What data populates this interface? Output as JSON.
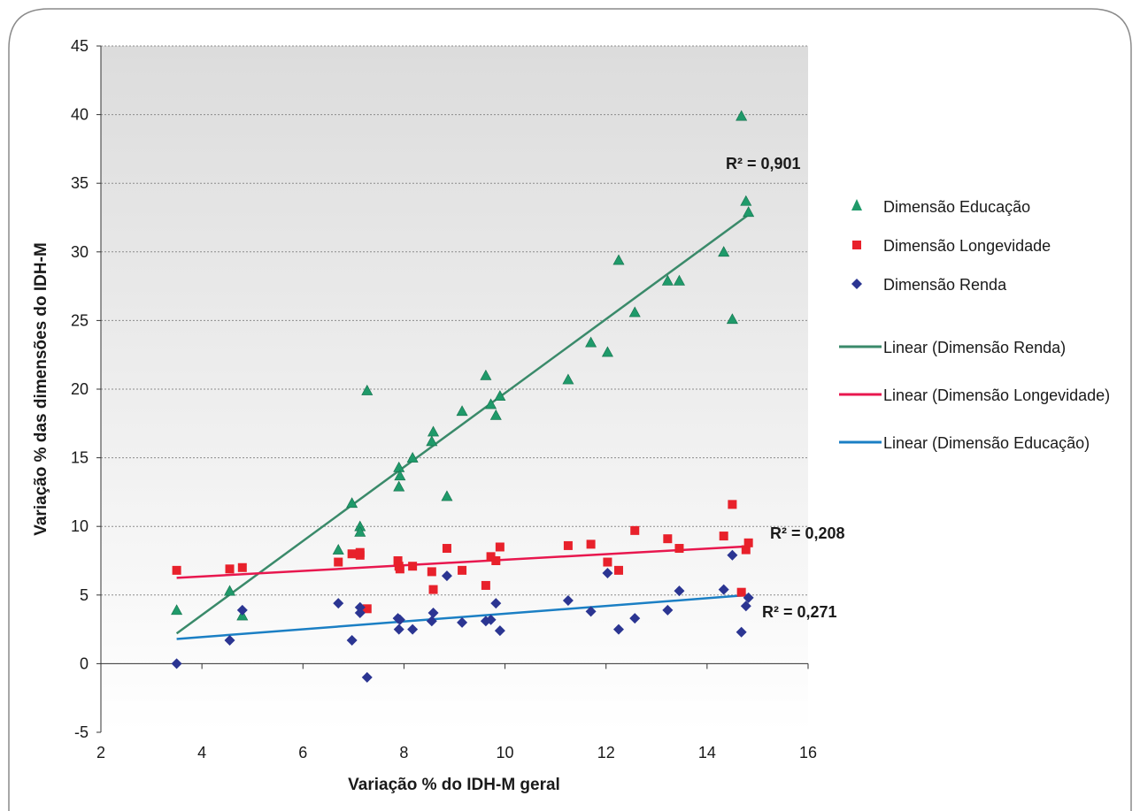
{
  "chart_data": {
    "type": "scatter",
    "xlabel": "Variação % do IDH-M geral",
    "ylabel": "Variação % das dimensões do IDH-M",
    "xlim": [
      2,
      16
    ],
    "ylim": [
      -5,
      45
    ],
    "x_ticks": [
      2,
      4,
      6,
      8,
      10,
      12,
      14,
      16
    ],
    "y_ticks": [
      -5,
      0,
      5,
      10,
      15,
      20,
      25,
      30,
      35,
      40,
      45
    ],
    "grid": "horizontal dotted",
    "legend_position": "right",
    "colors": {
      "educacao_marker": "#1f9a6a",
      "longevidade_marker": "#e8212b",
      "renda_marker": "#2b3592",
      "trend_educacao_line": "#3a8a6a",
      "trend_longevidade_line": "#e8174e",
      "trend_renda_line": "#1b7fc4"
    },
    "series": [
      {
        "name": "Dimensão Educação",
        "marker": "triangle",
        "color": "#1f9a6a",
        "points": [
          [
            3.5,
            3.9
          ],
          [
            4.55,
            5.3
          ],
          [
            4.8,
            3.5
          ],
          [
            6.7,
            8.3
          ],
          [
            6.97,
            11.7
          ],
          [
            7.13,
            10
          ],
          [
            7.13,
            9.6
          ],
          [
            7.27,
            19.9
          ],
          [
            7.9,
            14.3
          ],
          [
            7.9,
            12.9
          ],
          [
            7.92,
            13.7
          ],
          [
            8.17,
            15
          ],
          [
            8.55,
            16.2
          ],
          [
            8.58,
            16.9
          ],
          [
            8.85,
            12.2
          ],
          [
            9.15,
            18.4
          ],
          [
            9.62,
            21
          ],
          [
            9.72,
            18.9
          ],
          [
            9.82,
            18.1
          ],
          [
            9.9,
            19.5
          ],
          [
            11.25,
            20.7
          ],
          [
            11.7,
            23.4
          ],
          [
            12.03,
            22.7
          ],
          [
            12.25,
            29.4
          ],
          [
            12.57,
            25.6
          ],
          [
            13.22,
            27.9
          ],
          [
            13.45,
            27.9
          ],
          [
            14.33,
            30
          ],
          [
            14.5,
            25.1
          ],
          [
            14.68,
            39.9
          ],
          [
            14.77,
            33.7
          ],
          [
            14.82,
            32.9
          ]
        ]
      },
      {
        "name": "Dimensão Longevidade",
        "marker": "square",
        "color": "#e8212b",
        "points": [
          [
            3.5,
            6.8
          ],
          [
            4.55,
            6.9
          ],
          [
            4.8,
            7
          ],
          [
            6.7,
            7.4
          ],
          [
            6.97,
            8
          ],
          [
            7.13,
            7.9
          ],
          [
            7.13,
            8.1
          ],
          [
            7.27,
            4
          ],
          [
            7.88,
            7.5
          ],
          [
            7.9,
            7.1
          ],
          [
            7.92,
            6.9
          ],
          [
            8.17,
            7.1
          ],
          [
            8.55,
            6.7
          ],
          [
            8.58,
            5.4
          ],
          [
            8.85,
            8.4
          ],
          [
            9.15,
            6.8
          ],
          [
            9.62,
            5.7
          ],
          [
            9.72,
            7.8
          ],
          [
            9.82,
            7.5
          ],
          [
            9.9,
            8.5
          ],
          [
            11.25,
            8.6
          ],
          [
            11.7,
            8.7
          ],
          [
            12.03,
            7.4
          ],
          [
            12.25,
            6.8
          ],
          [
            12.57,
            9.7
          ],
          [
            13.22,
            9.1
          ],
          [
            13.45,
            8.4
          ],
          [
            14.33,
            9.3
          ],
          [
            14.5,
            11.6
          ],
          [
            14.68,
            5.2
          ],
          [
            14.77,
            8.3
          ],
          [
            14.82,
            8.8
          ]
        ]
      },
      {
        "name": "Dimensão Renda",
        "marker": "diamond",
        "color": "#2b3592",
        "points": [
          [
            3.5,
            0
          ],
          [
            4.55,
            1.7
          ],
          [
            4.8,
            3.9
          ],
          [
            6.7,
            4.4
          ],
          [
            6.97,
            1.7
          ],
          [
            7.13,
            3.7
          ],
          [
            7.13,
            4.1
          ],
          [
            7.27,
            -1
          ],
          [
            7.88,
            3.3
          ],
          [
            7.9,
            2.5
          ],
          [
            7.92,
            3.2
          ],
          [
            8.17,
            2.5
          ],
          [
            8.55,
            3.1
          ],
          [
            8.58,
            3.7
          ],
          [
            8.85,
            6.4
          ],
          [
            9.15,
            3
          ],
          [
            9.62,
            3.1
          ],
          [
            9.72,
            3.2
          ],
          [
            9.82,
            4.4
          ],
          [
            9.9,
            2.4
          ],
          [
            11.25,
            4.6
          ],
          [
            11.7,
            3.8
          ],
          [
            12.03,
            6.6
          ],
          [
            12.25,
            2.5
          ],
          [
            12.57,
            3.3
          ],
          [
            13.22,
            3.9
          ],
          [
            13.45,
            5.3
          ],
          [
            14.33,
            5.4
          ],
          [
            14.5,
            7.9
          ],
          [
            14.68,
            2.3
          ],
          [
            14.77,
            4.2
          ],
          [
            14.82,
            4.8
          ]
        ]
      }
    ],
    "trendlines": [
      {
        "name": "Linear (Dimensão Renda)",
        "color": "#3a8a6a",
        "x": [
          3.5,
          14.82
        ],
        "y": [
          2.2,
          32.7
        ],
        "r2_label": "R² = 0,901"
      },
      {
        "name": "Linear (Dimensão Longevidade)",
        "color": "#e8174e",
        "x": [
          3.5,
          14.82
        ],
        "y": [
          6.25,
          8.55
        ],
        "r2_label": "R² = 0,208"
      },
      {
        "name": "Linear (Dimensão Educação)",
        "color": "#1b7fc4",
        "x": [
          3.5,
          14.82
        ],
        "y": [
          1.8,
          5.0
        ],
        "r2_label": "R² = 0,271"
      }
    ]
  }
}
